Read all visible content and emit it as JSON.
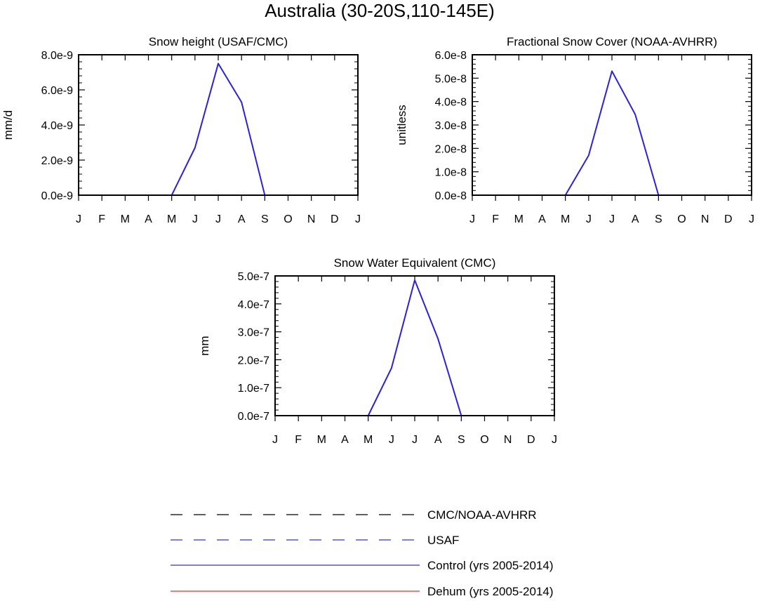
{
  "figure": {
    "title": "Australia (30-20S,110-145E)"
  },
  "legend": {
    "placement": "bottom-center",
    "items": [
      {
        "label": "CMC/NOAA-AVHRR",
        "color": "#000000",
        "dash": "dashed"
      },
      {
        "label": "USAF",
        "color": "#3333cc",
        "dash": "dashed"
      },
      {
        "label": "Control (yrs 2005-2014)",
        "color": "#3333cc",
        "dash": "solid"
      },
      {
        "label": "Dehum (yrs 2005-2014)",
        "color": "#e03030",
        "dash": "solid"
      }
    ]
  },
  "chart_data": [
    {
      "type": "line",
      "title": "Snow height (USAF/CMC)",
      "ylabel": "mm/d",
      "xlabel": "",
      "categories": [
        "J",
        "F",
        "M",
        "A",
        "M",
        "J",
        "J",
        "A",
        "S",
        "O",
        "N",
        "D",
        "J"
      ],
      "ylim": [
        0,
        8e-09
      ],
      "yticks": [
        0,
        2e-09,
        4e-09,
        6e-09,
        8e-09
      ],
      "yticklabels": [
        "0.0e-9",
        "2.0e-9",
        "4.0e-9",
        "6.0e-9",
        "8.0e-9"
      ],
      "series": [
        {
          "name": "CMC/NOAA-AVHRR",
          "values": [
            0,
            0,
            0,
            0,
            0,
            0,
            0,
            0,
            0,
            0,
            0,
            0,
            0
          ]
        },
        {
          "name": "USAF",
          "values": [
            0,
            0,
            0,
            0,
            0,
            0,
            0,
            0,
            0,
            0,
            0,
            0,
            0
          ]
        },
        {
          "name": "Control (yrs 2005-2014)",
          "values": [
            0,
            0,
            0,
            0,
            0,
            2.7e-09,
            7.5e-09,
            5.3e-09,
            0,
            0,
            0,
            0,
            0
          ]
        },
        {
          "name": "Dehum (yrs 2005-2014)",
          "values": [
            0,
            0,
            0,
            0,
            0,
            2.7e-09,
            7.5e-09,
            5.3e-09,
            0,
            0,
            0,
            0,
            0
          ]
        }
      ],
      "grid": false
    },
    {
      "type": "line",
      "title": "Fractional Snow Cover (NOAA-AVHRR)",
      "ylabel": "unitless",
      "xlabel": "",
      "categories": [
        "J",
        "F",
        "M",
        "A",
        "M",
        "J",
        "J",
        "A",
        "S",
        "O",
        "N",
        "D",
        "J"
      ],
      "ylim": [
        0,
        6e-08
      ],
      "yticks": [
        0,
        1e-08,
        2e-08,
        3e-08,
        4e-08,
        5e-08,
        6e-08
      ],
      "yticklabels": [
        "0.0e-8",
        "1.0e-8",
        "2.0e-8",
        "3.0e-8",
        "4.0e-8",
        "5.0e-8",
        "6.0e-8"
      ],
      "series": [
        {
          "name": "CMC/NOAA-AVHRR",
          "values": [
            0,
            0,
            0,
            0,
            0,
            0,
            0,
            0,
            0,
            0,
            0,
            0,
            0
          ]
        },
        {
          "name": "USAF",
          "values": [
            0,
            0,
            0,
            0,
            0,
            0,
            0,
            0,
            0,
            0,
            0,
            0,
            0
          ]
        },
        {
          "name": "Control (yrs 2005-2014)",
          "values": [
            0,
            0,
            0,
            0,
            0,
            1.7e-08,
            5.3e-08,
            3.45e-08,
            0,
            0,
            0,
            0,
            0
          ]
        },
        {
          "name": "Dehum (yrs 2005-2014)",
          "values": [
            0,
            0,
            0,
            0,
            0,
            1.7e-08,
            5.3e-08,
            3.45e-08,
            0,
            0,
            0,
            0,
            0
          ]
        }
      ],
      "grid": false
    },
    {
      "type": "line",
      "title": "Snow Water Equivalent (CMC)",
      "ylabel": "mm",
      "xlabel": "",
      "categories": [
        "J",
        "F",
        "M",
        "A",
        "M",
        "J",
        "J",
        "A",
        "S",
        "O",
        "N",
        "D",
        "J"
      ],
      "ylim": [
        0,
        5e-07
      ],
      "yticks": [
        0,
        1e-07,
        2e-07,
        3e-07,
        4e-07,
        5e-07
      ],
      "yticklabels": [
        "0.0e-7",
        "1.0e-7",
        "2.0e-7",
        "3.0e-7",
        "4.0e-7",
        "5.0e-7"
      ],
      "series": [
        {
          "name": "CMC/NOAA-AVHRR",
          "values": [
            0,
            0,
            0,
            0,
            0,
            0,
            0,
            0,
            0,
            0,
            0,
            0,
            0
          ]
        },
        {
          "name": "USAF",
          "values": [
            0,
            0,
            0,
            0,
            0,
            0,
            0,
            0,
            0,
            0,
            0,
            0,
            0
          ]
        },
        {
          "name": "Control (yrs 2005-2014)",
          "values": [
            0,
            0,
            0,
            0,
            0,
            1.7e-07,
            4.85e-07,
            2.75e-07,
            0,
            0,
            0,
            0,
            0
          ]
        },
        {
          "name": "Dehum (yrs 2005-2014)",
          "values": [
            0,
            0,
            0,
            0,
            0,
            1.7e-07,
            4.85e-07,
            2.75e-07,
            0,
            0,
            0,
            0,
            0
          ]
        }
      ],
      "grid": false
    }
  ]
}
